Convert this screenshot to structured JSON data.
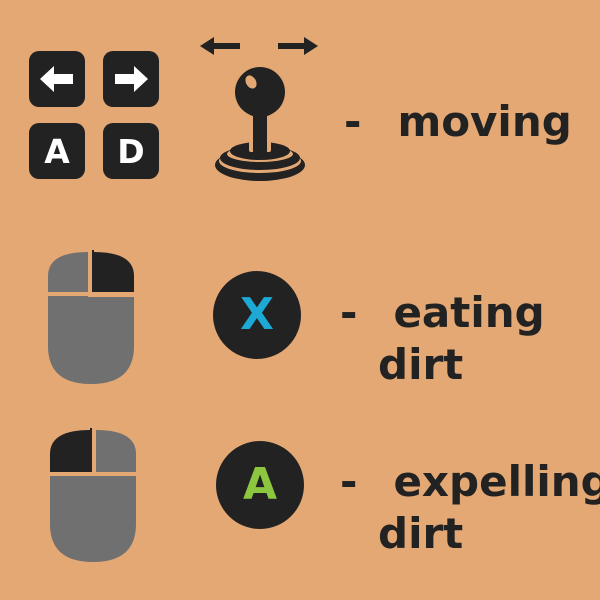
{
  "colors": {
    "background": "#E4A874",
    "key_fill": "#222222",
    "key_glyph": "#FFFFFF",
    "text": "#222222",
    "mouse_body": "#707070",
    "mouse_active": "#222222",
    "gamepad_button": "#222222",
    "x_button_letter": "#1DA9D6",
    "a_button_letter": "#8DC63F"
  },
  "controls": [
    {
      "action_line1": "moving",
      "action_line2": "",
      "keyboard": {
        "keys": [
          {
            "icon": "arrow-left-icon",
            "label": ""
          },
          {
            "icon": "arrow-right-icon",
            "label": ""
          },
          {
            "icon": "",
            "label": "A"
          },
          {
            "icon": "",
            "label": "D"
          }
        ]
      },
      "gamepad": {
        "icon": "joystick-icon",
        "direction_hint": "left-right arrows"
      }
    },
    {
      "action_line1": "eating",
      "action_line2": "dirt",
      "mouse": {
        "icon": "mouse-icon",
        "active_button": "right"
      },
      "gamepad": {
        "button_label": "X"
      }
    },
    {
      "action_line1": "expelling",
      "action_line2": "dirt",
      "mouse": {
        "icon": "mouse-icon",
        "active_button": "left"
      },
      "gamepad": {
        "button_label": "A"
      }
    }
  ],
  "dash": "-"
}
